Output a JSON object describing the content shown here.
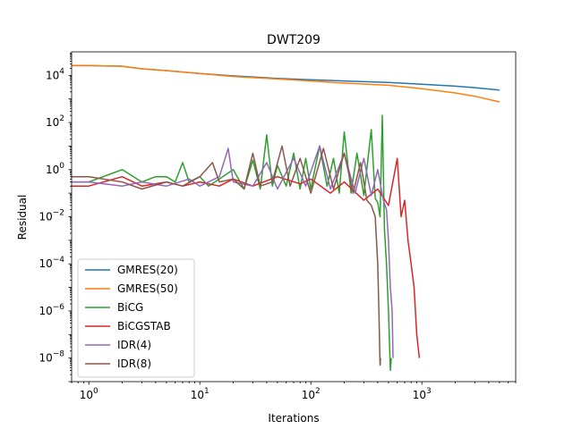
{
  "chart_data": {
    "type": "line",
    "title": "DWT209",
    "xlabel": "Iterations",
    "ylabel": "Residual",
    "xscale": "log",
    "yscale": "log",
    "xlim": [
      0.7,
      7000
    ],
    "ylim": [
      1e-09,
      100000.0
    ],
    "xticks": [
      {
        "value": 1,
        "base": "10",
        "exp": "0"
      },
      {
        "value": 10,
        "base": "10",
        "exp": "1"
      },
      {
        "value": 100,
        "base": "10",
        "exp": "2"
      },
      {
        "value": 1000,
        "base": "10",
        "exp": "3"
      }
    ],
    "yticks": [
      {
        "value": 10000.0,
        "base": "10",
        "exp": "4"
      },
      {
        "value": 100.0,
        "base": "10",
        "exp": "2"
      },
      {
        "value": 1,
        "base": "10",
        "exp": "0"
      },
      {
        "value": 0.01,
        "base": "10",
        "exp": "−2"
      },
      {
        "value": 0.0001,
        "base": "10",
        "exp": "−4"
      },
      {
        "value": 1e-06,
        "base": "10",
        "exp": "−6"
      },
      {
        "value": 1e-08,
        "base": "10",
        "exp": "−8"
      }
    ],
    "grid": false,
    "legend_position": "lower-left",
    "series": [
      {
        "name": "GMRES(20)",
        "color": "#1f77b4",
        "points": [
          [
            0.7,
            26000
          ],
          [
            1,
            26000
          ],
          [
            2,
            24500
          ],
          [
            3,
            19000
          ],
          [
            5,
            16000
          ],
          [
            10,
            12000
          ],
          [
            20,
            9500
          ],
          [
            50,
            7500
          ],
          [
            100,
            6500
          ],
          [
            200,
            5800
          ],
          [
            500,
            5000
          ],
          [
            1000,
            4200
          ],
          [
            2000,
            3500
          ],
          [
            3000,
            3000
          ],
          [
            5000,
            2400
          ]
        ]
      },
      {
        "name": "GMRES(50)",
        "color": "#ff7f0e",
        "points": [
          [
            0.7,
            26000
          ],
          [
            1,
            26000
          ],
          [
            2,
            24500
          ],
          [
            3,
            19000
          ],
          [
            5,
            16000
          ],
          [
            10,
            12000
          ],
          [
            20,
            9000
          ],
          [
            50,
            7000
          ],
          [
            100,
            5800
          ],
          [
            200,
            4700
          ],
          [
            500,
            3800
          ],
          [
            1000,
            2700
          ],
          [
            2000,
            1800
          ],
          [
            3000,
            1300
          ],
          [
            5000,
            750
          ]
        ]
      },
      {
        "name": "BiCG",
        "color": "#2ca02c",
        "points": [
          [
            0.7,
            0.3
          ],
          [
            1,
            0.3
          ],
          [
            2,
            1.0
          ],
          [
            3,
            0.3
          ],
          [
            4,
            0.5
          ],
          [
            5,
            0.5
          ],
          [
            6,
            0.3
          ],
          [
            7,
            2.0
          ],
          [
            8,
            0.3
          ],
          [
            10,
            0.5
          ],
          [
            12,
            0.2
          ],
          [
            15,
            0.4
          ],
          [
            20,
            1.0
          ],
          [
            25,
            0.15
          ],
          [
            30,
            2.5
          ],
          [
            35,
            0.15
          ],
          [
            40,
            30
          ],
          [
            45,
            0.2
          ],
          [
            50,
            1.5
          ],
          [
            60,
            0.2
          ],
          [
            70,
            5
          ],
          [
            80,
            0.15
          ],
          [
            90,
            3
          ],
          [
            100,
            0.15
          ],
          [
            120,
            10
          ],
          [
            140,
            0.2
          ],
          [
            160,
            3
          ],
          [
            180,
            0.1
          ],
          [
            200,
            40
          ],
          [
            230,
            0.1
          ],
          [
            260,
            5
          ],
          [
            300,
            0.08
          ],
          [
            350,
            50
          ],
          [
            380,
            0.06
          ],
          [
            400,
            0.04
          ],
          [
            420,
            0.01
          ],
          [
            440,
            200
          ],
          [
            460,
            0.003
          ],
          [
            480,
            0.0001
          ],
          [
            500,
            1e-06
          ],
          [
            520,
            3e-09
          ],
          [
            530,
            1e-08
          ]
        ]
      },
      {
        "name": "BiCGSTAB",
        "color": "#d62728",
        "points": [
          [
            0.7,
            0.2
          ],
          [
            1,
            0.2
          ],
          [
            2,
            0.5
          ],
          [
            3,
            0.2
          ],
          [
            5,
            0.3
          ],
          [
            7,
            0.2
          ],
          [
            10,
            0.3
          ],
          [
            15,
            0.2
          ],
          [
            20,
            0.4
          ],
          [
            30,
            0.2
          ],
          [
            50,
            0.5
          ],
          [
            80,
            0.25
          ],
          [
            100,
            0.4
          ],
          [
            150,
            0.1
          ],
          [
            200,
            0.3
          ],
          [
            300,
            0.05
          ],
          [
            400,
            0.15
          ],
          [
            500,
            0.03
          ],
          [
            600,
            3
          ],
          [
            650,
            0.01
          ],
          [
            700,
            0.05
          ],
          [
            750,
            0.001
          ],
          [
            800,
            0.0001
          ],
          [
            850,
            1e-05
          ],
          [
            900,
            1e-07
          ],
          [
            950,
            1e-08
          ]
        ]
      },
      {
        "name": "IDR(4)",
        "color": "#9467bd",
        "points": [
          [
            0.7,
            0.3
          ],
          [
            1,
            0.3
          ],
          [
            2,
            0.2
          ],
          [
            3,
            0.3
          ],
          [
            5,
            0.2
          ],
          [
            8,
            0.4
          ],
          [
            10,
            0.2
          ],
          [
            15,
            0.5
          ],
          [
            18,
            8
          ],
          [
            20,
            0.3
          ],
          [
            30,
            0.2
          ],
          [
            40,
            2
          ],
          [
            50,
            0.15
          ],
          [
            70,
            3
          ],
          [
            90,
            0.2
          ],
          [
            120,
            10
          ],
          [
            150,
            0.15
          ],
          [
            200,
            5
          ],
          [
            250,
            0.1
          ],
          [
            300,
            3
          ],
          [
            350,
            0.08
          ],
          [
            400,
            1
          ],
          [
            450,
            0.05
          ],
          [
            480,
            0.02
          ],
          [
            500,
            0.001
          ],
          [
            520,
            1e-05
          ],
          [
            540,
            1e-06
          ],
          [
            550,
            1e-08
          ]
        ]
      },
      {
        "name": "IDR(8)",
        "color": "#8c564b",
        "points": [
          [
            0.7,
            0.5
          ],
          [
            1,
            0.5
          ],
          [
            2,
            0.3
          ],
          [
            3,
            0.15
          ],
          [
            5,
            0.3
          ],
          [
            7,
            0.2
          ],
          [
            10,
            0.5
          ],
          [
            13,
            2
          ],
          [
            15,
            0.3
          ],
          [
            20,
            0.4
          ],
          [
            25,
            0.15
          ],
          [
            30,
            5
          ],
          [
            35,
            0.2
          ],
          [
            45,
            0.3
          ],
          [
            55,
            10
          ],
          [
            65,
            0.2
          ],
          [
            80,
            3
          ],
          [
            100,
            0.1
          ],
          [
            130,
            8
          ],
          [
            160,
            0.15
          ],
          [
            200,
            5
          ],
          [
            240,
            0.1
          ],
          [
            280,
            2
          ],
          [
            320,
            0.05
          ],
          [
            350,
            0.03
          ],
          [
            380,
            0.01
          ],
          [
            400,
            0.0001
          ],
          [
            410,
            1e-06
          ],
          [
            420,
            5e-09
          ],
          [
            425,
            1e-08
          ]
        ]
      }
    ]
  }
}
